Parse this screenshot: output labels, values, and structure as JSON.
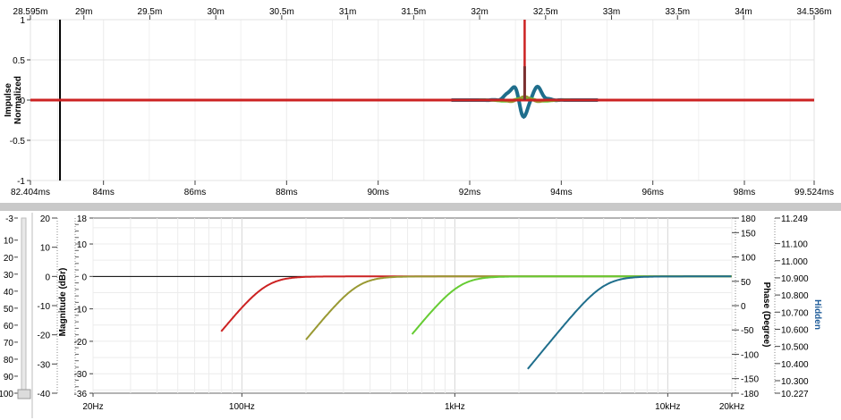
{
  "chart_data": [
    {
      "type": "line",
      "title": "",
      "ylabel": [
        "Impulse",
        "Normalized"
      ],
      "xlabel_bottom_unit": "ms",
      "xlabel_top_unit": "m",
      "x_bottom": {
        "range": [
          82.404,
          99.524
        ],
        "tick_labels": [
          "82.404ms",
          "84ms",
          "86ms",
          "88ms",
          "90ms",
          "92ms",
          "94ms",
          "96ms",
          "98ms",
          "99.524ms"
        ],
        "tick_values": [
          82.404,
          84,
          86,
          88,
          90,
          92,
          94,
          96,
          98,
          99.524
        ]
      },
      "x_top": {
        "range": [
          28.595,
          34.536
        ],
        "tick_labels": [
          "28.595m",
          "29m",
          "29.5m",
          "30m",
          "30.5m",
          "31m",
          "31.5m",
          "32m",
          "32.5m",
          "33m",
          "33.5m",
          "34m",
          "34.536m"
        ],
        "tick_values": [
          28.595,
          29,
          29.5,
          30,
          30.5,
          31,
          31.5,
          32,
          32.5,
          33,
          33.5,
          34,
          34.536
        ]
      },
      "y": {
        "range": [
          -1,
          1
        ],
        "tick_labels": [
          "1",
          "0.5",
          "0",
          "-0.5",
          "-1"
        ],
        "tick_values": [
          1,
          0.5,
          0,
          -0.5,
          -1
        ]
      },
      "cursor_x_ms": 83.05,
      "impulse_peak_ms": 93.2,
      "series": [
        {
          "color": "#1f6e8c",
          "peak": -0.2
        },
        {
          "color": "#66cc33",
          "peak": 0.03
        },
        {
          "color": "#999933",
          "peak": 0.05
        },
        {
          "color": "#cc2222",
          "peak": 1.0
        }
      ],
      "grid": true
    },
    {
      "type": "line",
      "title": "",
      "ylabel_left": "Magnitude (dBr)",
      "ylabel_right": "Phase (Degree)",
      "ylabel_far_right": "Hidden",
      "x": {
        "scale": "log",
        "range": [
          20,
          20000
        ],
        "tick_labels": [
          "20Hz",
          "100Hz",
          "1kHz",
          "10kHz",
          "20kHz"
        ],
        "tick_values": [
          20,
          100,
          1000,
          10000,
          20000
        ]
      },
      "y_left": {
        "range": [
          -36,
          18
        ],
        "tick_labels": [
          "18",
          "10",
          "0",
          "-10",
          "-20",
          "-30",
          "-36"
        ],
        "tick_values": [
          18,
          10,
          0,
          -10,
          -20,
          -30,
          -36
        ]
      },
      "y_right": {
        "range": [
          -180,
          180
        ],
        "tick_labels": [
          "180",
          "150",
          "100",
          "50",
          "0",
          "-50",
          "-100",
          "-150",
          "-180"
        ],
        "tick_values": [
          180,
          150,
          100,
          50,
          0,
          -50,
          -100,
          -150,
          -180
        ]
      },
      "y_hidden": {
        "range": [
          10.227,
          11.249
        ],
        "tick_labels": [
          "11.249",
          "11.100",
          "11.000",
          "10.900",
          "10.800",
          "10.700",
          "10.600",
          "10.500",
          "10.400",
          "10.300",
          "10.227"
        ],
        "tick_values": [
          11.249,
          11.1,
          11.0,
          10.9,
          10.8,
          10.7,
          10.6,
          10.5,
          10.4,
          10.3,
          10.227
        ]
      },
      "series": [
        {
          "color": "#cc2222",
          "fc": 130,
          "start": 80
        },
        {
          "color": "#999933",
          "fc": 350,
          "start": 200
        },
        {
          "color": "#66cc33",
          "fc": 1050,
          "start": 630
        },
        {
          "color": "#1f6e8c",
          "fc": 5000,
          "start": 2200
        }
      ],
      "grid": true
    }
  ],
  "side_scale": {
    "tick_labels": [
      "-3",
      "10",
      "20",
      "30",
      "40",
      "50",
      "60",
      "70",
      "80",
      "90",
      "100"
    ],
    "tick_values": [
      -3,
      10,
      20,
      30,
      40,
      50,
      60,
      70,
      80,
      90,
      100
    ]
  },
  "side_scale_two": {
    "tick_labels": [
      "20",
      "10",
      "0",
      "-10",
      "-20",
      "-30",
      "-40"
    ],
    "tick_values": [
      20,
      10,
      0,
      -10,
      -20,
      -30,
      -40
    ]
  }
}
